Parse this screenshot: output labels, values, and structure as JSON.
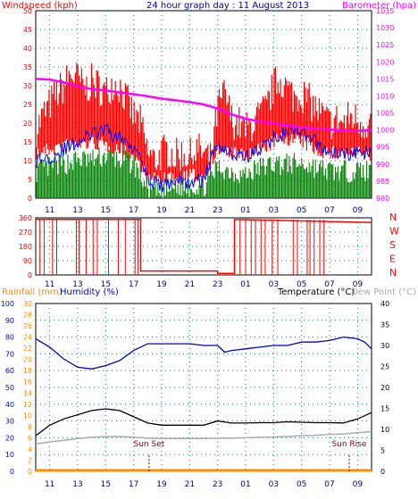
{
  "colors": {
    "wind": "#ff0000",
    "avg": "#0000ff",
    "gust_low": "#008000",
    "baro": "#ff00ff",
    "winddir": "#ff0000",
    "rain": "#ff8c00",
    "humidity": "#0000cc",
    "temperature": "#000000",
    "dewpoint": "#aaaaaa",
    "dark_blue": "#00008b",
    "grid": "#008080",
    "sunmark": "#8b0000"
  },
  "chart_data": [
    {
      "type": "line",
      "title": "24 hour graph day : 11 August 2013",
      "left_axis_title": "Windspeed (kph)",
      "right_axis_title": "Barometer (hpa)",
      "x_ticks": [
        "11",
        "13",
        "15",
        "17",
        "19",
        "21",
        "23",
        "01",
        "03",
        "05",
        "07",
        "09"
      ],
      "left_ticks": [
        "0",
        "5",
        "10",
        "15",
        "20",
        "25",
        "30",
        "35",
        "40",
        "45",
        "50"
      ],
      "right_ticks": [
        "980",
        "985",
        "990",
        "995",
        "1000",
        "1005",
        "1010",
        "1015",
        "1020",
        "1025",
        "1030",
        "1035"
      ],
      "ylim_left": [
        0,
        50
      ],
      "ylim_right": [
        980,
        1035
      ],
      "grid": true,
      "series": [
        {
          "key": "gust_high",
          "color_key": "wind",
          "axis": "left",
          "x": [
            10,
            10.5,
            11,
            11.5,
            12,
            12.5,
            13,
            13.5,
            14,
            14.5,
            15,
            15.5,
            16,
            16.5,
            17,
            17.5,
            18,
            18.5,
            19,
            19.5,
            20,
            20.5,
            21,
            21.5,
            22,
            22.5,
            23,
            23.5,
            24,
            24.5,
            25,
            25.5,
            26,
            26.5,
            27,
            27.5,
            28,
            28.5,
            29,
            29.5,
            30,
            30.5,
            31,
            31.5,
            32,
            32.5,
            33,
            33.5,
            34
          ],
          "values": [
            18,
            22,
            25,
            28,
            30,
            33,
            32,
            29,
            31,
            30,
            28,
            31,
            30,
            26,
            22,
            20,
            12,
            10,
            12,
            13,
            11,
            12,
            11,
            13,
            12,
            10,
            24,
            28,
            21,
            20,
            18,
            20,
            22,
            24,
            30,
            32,
            29,
            27,
            28,
            26,
            24,
            22,
            20,
            21,
            20,
            22,
            21,
            20,
            20
          ]
        },
        {
          "key": "gust_base",
          "color_key": "wind",
          "axis": "left",
          "x": [
            10,
            11,
            12,
            13,
            14,
            15,
            16,
            17,
            17.5,
            18,
            19,
            20,
            21,
            22,
            23,
            24,
            25,
            26,
            27,
            28,
            29,
            30,
            31,
            32,
            33,
            34
          ],
          "values": [
            14,
            15,
            16,
            16,
            17,
            16,
            15,
            13,
            11,
            7,
            7,
            7,
            8,
            8,
            15,
            14,
            13,
            15,
            17,
            18,
            17,
            15,
            14,
            14,
            14,
            13
          ]
        },
        {
          "key": "average",
          "color_key": "avg",
          "axis": "left",
          "x": [
            10,
            11,
            12,
            13,
            14,
            15,
            16,
            17,
            17.5,
            18,
            19,
            20,
            21,
            22,
            23,
            24,
            25,
            26,
            27,
            28,
            29,
            30,
            31,
            32,
            33,
            34
          ],
          "values": [
            10,
            11,
            13,
            15,
            17,
            18,
            16,
            14,
            12,
            5,
            3,
            5,
            4,
            5,
            15,
            12,
            11,
            13,
            16,
            18,
            17,
            15,
            12,
            12,
            12,
            12
          ]
        },
        {
          "key": "lull",
          "color_key": "gust_low",
          "axis": "left",
          "x": [
            10,
            11,
            12,
            13,
            14,
            15,
            16,
            17,
            17.5,
            18,
            19,
            20,
            21,
            22,
            23,
            24,
            25,
            26,
            27,
            28,
            29,
            30,
            31,
            32,
            33,
            34
          ],
          "values": [
            6,
            7,
            8,
            9,
            9,
            10,
            9,
            8,
            5,
            1,
            0,
            2,
            2,
            2,
            7,
            6,
            5,
            7,
            8,
            8,
            8,
            7,
            6,
            6,
            6,
            6
          ]
        },
        {
          "key": "barometer",
          "color_key": "baro",
          "axis": "right",
          "x": [
            10,
            11,
            12,
            13,
            14,
            15,
            16,
            17,
            18,
            19,
            20,
            21,
            22,
            23,
            24,
            25,
            26,
            27,
            28,
            29,
            30,
            31,
            32,
            33,
            34
          ],
          "values": [
            1015,
            1014.8,
            1014,
            1012.8,
            1012,
            1011.6,
            1011,
            1010.5,
            1009.9,
            1009.2,
            1008.7,
            1008.2,
            1007.5,
            1006.3,
            1004.6,
            1003.3,
            1002.5,
            1001.9,
            1001.4,
            1000.8,
            1000.4,
            1000.1,
            999.9,
            999.8,
            1000
          ]
        }
      ]
    },
    {
      "type": "line",
      "x_ticks": [
        "11",
        "13",
        "15",
        "17",
        "19",
        "21",
        "23",
        "01",
        "03",
        "05",
        "07",
        "09"
      ],
      "left_ticks": [
        "0",
        "90",
        "180",
        "270",
        "360"
      ],
      "right_labels": [
        "N",
        "W",
        "S",
        "E",
        "N"
      ],
      "ylim": [
        0,
        360
      ],
      "grid": true,
      "series": [
        {
          "key": "wind_direction",
          "color_key": "winddir",
          "x": [
            10,
            17.5,
            17.5,
            23,
            23,
            24.2,
            24.2,
            34
          ],
          "values": [
            350,
            350,
            25,
            25,
            10,
            10,
            350,
            330
          ]
        }
      ]
    },
    {
      "type": "line",
      "rain_title": "Rainfall (mm)",
      "humidity_title": "Humidity (%)",
      "temperature_title": "Temperature (°C)",
      "dewpoint_title": "Dew Point (°C)",
      "x_ticks": [
        "11",
        "13",
        "15",
        "17",
        "19",
        "21",
        "23",
        "01",
        "03",
        "05",
        "07",
        "09"
      ],
      "humidity_ticks": [
        "0",
        "10",
        "20",
        "30",
        "40",
        "50",
        "60",
        "70",
        "80",
        "90",
        "100"
      ],
      "rain_ticks": [
        "0",
        "2",
        "4",
        "6",
        "8",
        "10",
        "12",
        "14",
        "16",
        "18",
        "20",
        "22",
        "24",
        "26",
        "28",
        "30"
      ],
      "temp_ticks": [
        "0",
        "5",
        "10",
        "15",
        "20",
        "25",
        "30",
        "35",
        "40"
      ],
      "ylim_humidity": [
        0,
        100
      ],
      "ylim_temperature": [
        0,
        40
      ],
      "grid": true,
      "annotations": [
        {
          "label": "Sun Set",
          "x": 18.1
        },
        {
          "label": "Sun Rise",
          "x": 32.4
        }
      ],
      "series": [
        {
          "key": "humidity",
          "color_key": "humidity",
          "axis": "humidity",
          "x": [
            10,
            11,
            12,
            13,
            14,
            15,
            16,
            17,
            18,
            19,
            20,
            21,
            22,
            23,
            23.5,
            24,
            25,
            26,
            27,
            28,
            29,
            30,
            31,
            32,
            33,
            33.5,
            34
          ],
          "values": [
            79,
            74,
            67,
            62,
            61,
            63,
            66,
            72,
            76,
            76,
            76,
            76,
            75,
            75,
            71,
            72,
            73,
            74,
            75,
            75,
            77,
            77,
            78,
            80,
            79,
            77,
            73
          ]
        },
        {
          "key": "temperature",
          "color_key": "temperature",
          "axis": "temp",
          "x": [
            10,
            11,
            12,
            13,
            14,
            15,
            16,
            17,
            18,
            19,
            20,
            21,
            22,
            23,
            24,
            25,
            26,
            27,
            28,
            29,
            30,
            31,
            32,
            33,
            34
          ],
          "values": [
            8.5,
            11,
            12.5,
            13.5,
            14.5,
            14.9,
            14.5,
            13,
            11.5,
            11,
            11,
            11,
            11,
            12,
            11.5,
            11.5,
            11.6,
            11.6,
            11.8,
            11.7,
            11.6,
            11.6,
            11.5,
            12.5,
            14
          ]
        },
        {
          "key": "dew_point",
          "color_key": "dewpoint",
          "axis": "temp",
          "x": [
            10,
            11,
            12,
            13,
            14,
            15,
            16,
            17,
            18,
            19,
            20,
            21,
            22,
            23,
            24,
            25,
            26,
            27,
            28,
            29,
            30,
            31,
            32,
            33,
            34
          ],
          "values": [
            6.5,
            7,
            7.4,
            7.8,
            8.1,
            8.3,
            8.3,
            8.1,
            7.9,
            7.8,
            7.8,
            7.8,
            7.8,
            7.9,
            7.9,
            8,
            8.1,
            8.2,
            8.3,
            8.5,
            8.6,
            8.8,
            8.9,
            9.2,
            9.5
          ]
        },
        {
          "key": "rainfall",
          "color_key": "rain",
          "axis": "rain",
          "x": [
            10,
            34
          ],
          "values": [
            0,
            0
          ]
        }
      ]
    }
  ]
}
